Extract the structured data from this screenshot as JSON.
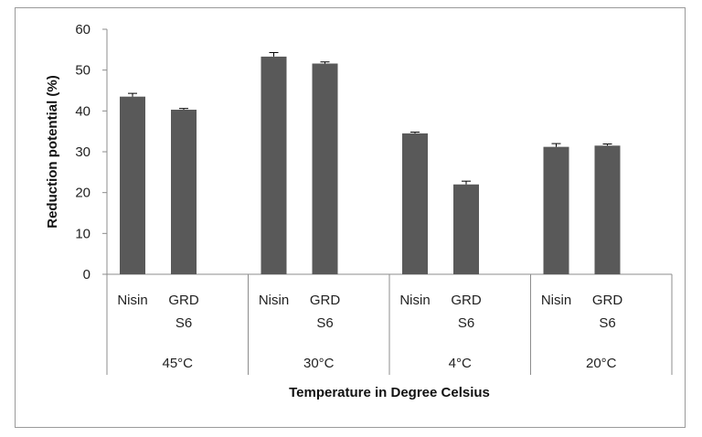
{
  "chart_data": {
    "type": "bar",
    "title": "",
    "xlabel": "Temperature in Degree Celsius",
    "ylabel": "Reduction potential (%)",
    "ylim": [
      0,
      60
    ],
    "yticks": [
      0,
      10,
      20,
      30,
      40,
      50,
      60
    ],
    "grid": false,
    "legend": "none",
    "bar_color": "#595959",
    "groups": [
      {
        "label": "45°C",
        "bars": [
          {
            "label": "Nisin",
            "value": 43.5,
            "error": 0.8
          },
          {
            "label": "GRD S6",
            "value": 40.3,
            "error": 0.3
          }
        ]
      },
      {
        "label": "30°C",
        "bars": [
          {
            "label": "Nisin",
            "value": 53.3,
            "error": 1.0
          },
          {
            "label": "GRD S6",
            "value": 51.6,
            "error": 0.4
          }
        ]
      },
      {
        "label": "4°C",
        "bars": [
          {
            "label": "Nisin",
            "value": 34.5,
            "error": 0.3
          },
          {
            "label": "GRD S6",
            "value": 22.0,
            "error": 0.8
          }
        ]
      },
      {
        "label": "20°C",
        "bars": [
          {
            "label": "Nisin",
            "value": 31.2,
            "error": 0.8
          },
          {
            "label": "GRD S6",
            "value": 31.5,
            "error": 0.4
          }
        ]
      }
    ]
  }
}
